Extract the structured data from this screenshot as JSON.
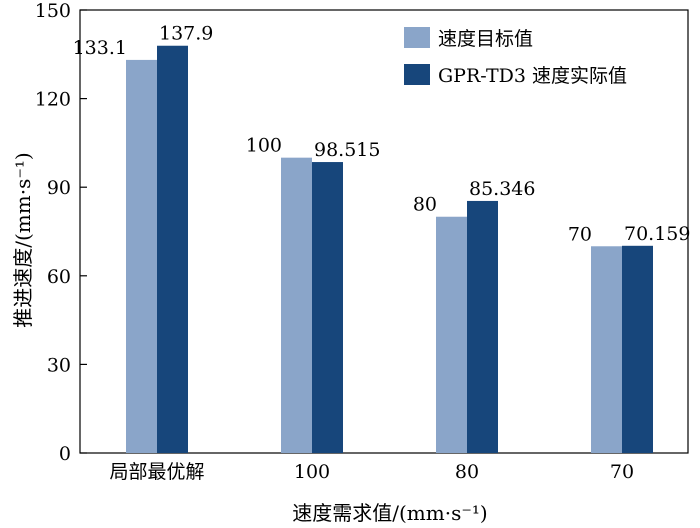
{
  "chart_data": {
    "type": "bar",
    "categories": [
      "局部最优解",
      "100",
      "80",
      "70"
    ],
    "series": [
      {
        "name": "速度目标值",
        "color": "#8aa5c9",
        "values": [
          133.1,
          100,
          80,
          70
        ],
        "labels": [
          "133.1",
          "100",
          "80",
          "70"
        ]
      },
      {
        "name": "GPR-TD3 速度实际值",
        "color": "#17467b",
        "values": [
          137.9,
          98.515,
          85.346,
          70.159
        ],
        "labels": [
          "137.9",
          "98.515",
          "85.346",
          "70.159"
        ]
      }
    ],
    "xlabel": "速度需求值/(mm·s⁻¹)",
    "ylabel": "推进速度/(mm·s⁻¹)",
    "ylim": [
      0,
      150
    ],
    "yticks": [
      0,
      30,
      60,
      90,
      120,
      150
    ],
    "grid": false,
    "legend_position": "top-right"
  }
}
